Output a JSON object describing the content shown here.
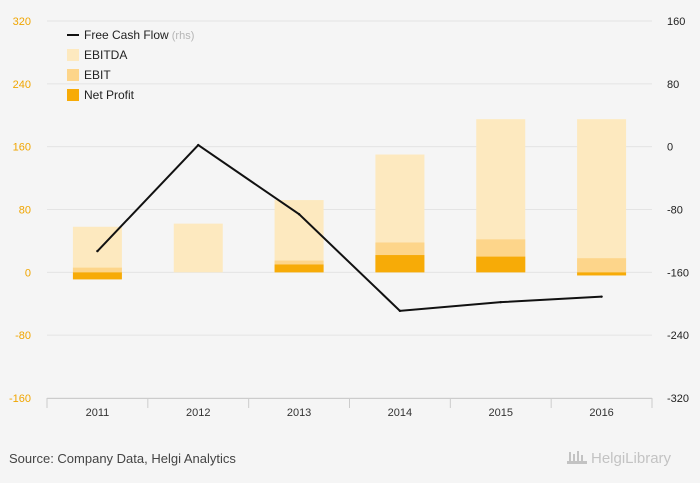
{
  "chart_data": {
    "type": "bar",
    "categories": [
      "2011",
      "2012",
      "2013",
      "2014",
      "2015",
      "2016"
    ],
    "series": [
      {
        "name": "EBITDA",
        "kind": "bar",
        "axis": "left",
        "values": [
          58,
          62,
          92,
          150,
          195,
          195
        ],
        "color": "#fde9bf"
      },
      {
        "name": "EBIT",
        "kind": "bar",
        "axis": "left",
        "values": [
          6,
          null,
          15,
          38,
          42,
          18
        ],
        "color": "#fdd58a"
      },
      {
        "name": "Net Profit",
        "kind": "bar",
        "axis": "left",
        "values": [
          -9,
          null,
          10,
          22,
          20,
          -4
        ],
        "color": "#f7ab07"
      },
      {
        "name": "Free Cash Flow",
        "kind": "line",
        "axis": "right",
        "values": [
          -133,
          2,
          -86,
          -209,
          -198,
          -191
        ],
        "color": "#111111"
      }
    ],
    "left_axis": {
      "ylim": [
        -160,
        320
      ],
      "ticks": [
        "320",
        "240",
        "160",
        "80",
        "0",
        "-80",
        "-160"
      ],
      "tick_values": [
        320,
        240,
        160,
        80,
        0,
        -80,
        -160
      ],
      "color": "#f0a500"
    },
    "right_axis": {
      "ylim": [
        -320,
        160
      ],
      "ticks": [
        "160",
        "80",
        "0",
        "-80",
        "-160",
        "-240",
        "-320"
      ],
      "tick_values": [
        160,
        80,
        0,
        -80,
        -160,
        -240,
        -320
      ]
    },
    "legend": [
      {
        "label": "Free Cash Flow",
        "suffix": "(rhs)",
        "type": "line",
        "color": "#111111"
      },
      {
        "label": "EBITDA",
        "type": "box",
        "color": "#fde9bf"
      },
      {
        "label": "EBIT",
        "type": "box",
        "color": "#fdd58a"
      },
      {
        "label": "Net Profit",
        "type": "box",
        "color": "#f7ab07"
      }
    ],
    "legend_position": "top-left"
  },
  "footer": {
    "source": "Source: Company Data, Helgi Analytics",
    "brand": "HelgiLibrary"
  }
}
